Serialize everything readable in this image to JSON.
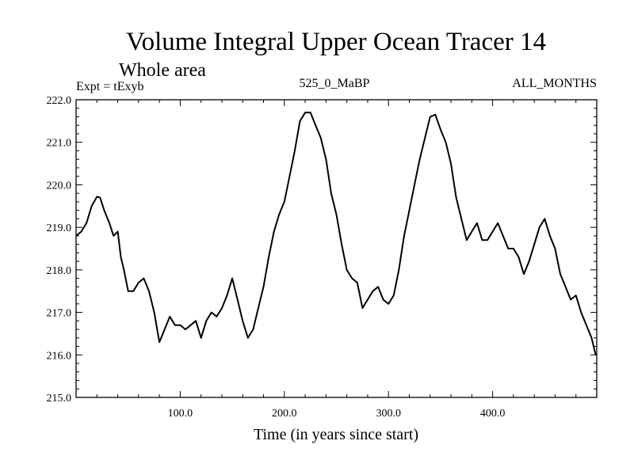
{
  "chart_data": {
    "type": "line",
    "title": "Volume Integral Upper Ocean Tracer 14",
    "subtitle": "Whole area",
    "annotations": {
      "left": "Expt = tExyb",
      "center": "525_0_MaBP",
      "right": "ALL_MONTHS"
    },
    "xlabel": "Time (in years since start)",
    "ylabel": "",
    "xlim": [
      0,
      500
    ],
    "ylim": [
      215.0,
      222.0
    ],
    "x_ticks": [
      100,
      200,
      300,
      400
    ],
    "x_tick_labels": [
      "100.0",
      "200.0",
      "300.0",
      "400.0"
    ],
    "y_ticks": [
      215,
      216,
      217,
      218,
      219,
      220,
      221,
      222
    ],
    "y_tick_labels": [
      "215.0",
      "216.0",
      "217.0",
      "218.0",
      "219.0",
      "220.0",
      "221.0",
      "222.0"
    ],
    "grid": false,
    "series": [
      {
        "color": "#000000",
        "x": [
          0,
          5,
          10,
          15,
          20,
          23,
          27,
          32,
          36,
          40,
          43,
          46,
          50,
          55,
          60,
          65,
          70,
          75,
          80,
          85,
          90,
          95,
          100,
          105,
          110,
          115,
          120,
          125,
          130,
          135,
          140,
          145,
          150,
          155,
          160,
          165,
          170,
          175,
          180,
          185,
          190,
          195,
          200,
          205,
          210,
          215,
          220,
          225,
          230,
          235,
          240,
          245,
          250,
          255,
          260,
          265,
          270,
          275,
          280,
          285,
          290,
          295,
          300,
          305,
          310,
          315,
          320,
          325,
          330,
          335,
          340,
          345,
          350,
          355,
          360,
          365,
          370,
          375,
          380,
          385,
          390,
          395,
          400,
          405,
          410,
          415,
          420,
          425,
          430,
          435,
          440,
          445,
          450,
          455,
          460,
          465,
          470,
          475,
          480,
          485,
          490,
          495,
          499
        ],
        "y": [
          218.8,
          218.9,
          219.1,
          219.5,
          219.72,
          219.7,
          219.4,
          219.1,
          218.8,
          218.9,
          218.3,
          218.0,
          217.5,
          217.5,
          217.7,
          217.8,
          217.5,
          217.0,
          216.3,
          216.6,
          216.9,
          216.7,
          216.7,
          216.6,
          216.7,
          216.8,
          216.4,
          216.8,
          217.0,
          216.9,
          217.1,
          217.4,
          217.8,
          217.3,
          216.8,
          216.4,
          216.6,
          217.1,
          217.6,
          218.3,
          218.9,
          219.3,
          219.6,
          220.2,
          220.8,
          221.5,
          221.7,
          221.7,
          221.4,
          221.1,
          220.6,
          219.8,
          219.3,
          218.6,
          218.0,
          217.8,
          217.7,
          217.1,
          217.3,
          217.5,
          217.6,
          217.3,
          217.2,
          217.4,
          218.0,
          218.8,
          219.4,
          220.0,
          220.6,
          221.1,
          221.6,
          221.65,
          221.3,
          221.0,
          220.5,
          219.7,
          219.2,
          218.7,
          218.9,
          219.1,
          218.7,
          218.7,
          218.9,
          219.1,
          218.8,
          218.5,
          218.5,
          218.3,
          217.9,
          218.2,
          218.6,
          219.0,
          219.2,
          218.8,
          218.5,
          217.9,
          217.6,
          217.3,
          217.4,
          217.0,
          216.7,
          216.4,
          216.0
        ]
      }
    ]
  }
}
